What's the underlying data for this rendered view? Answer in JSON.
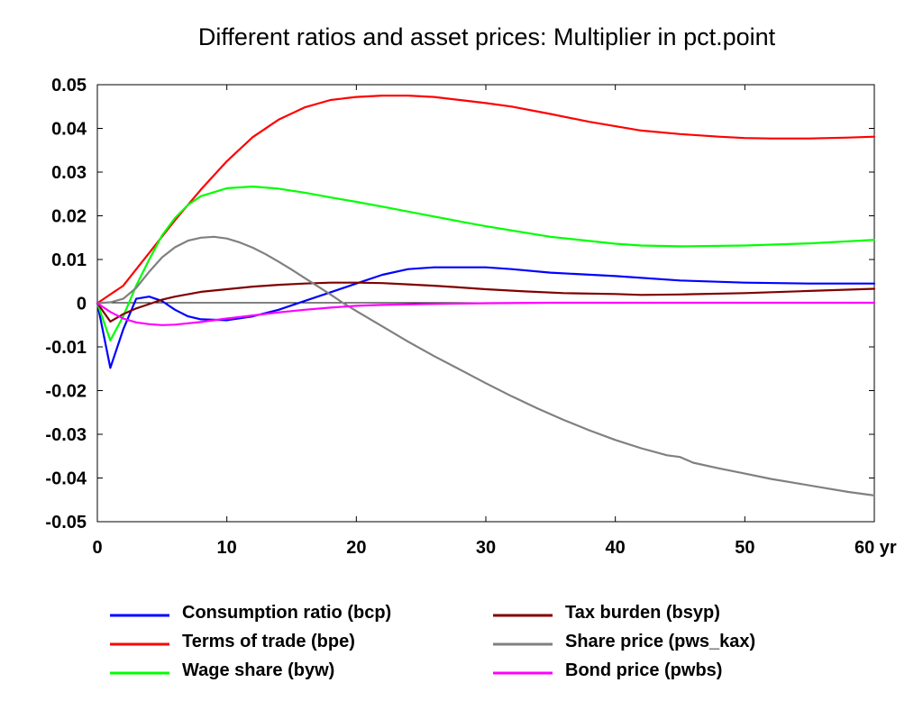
{
  "chart_data": {
    "type": "line",
    "title": "Different ratios and asset prices: Multiplier in pct.point",
    "xlabel": "",
    "ylabel": "",
    "xlim": [
      0,
      60
    ],
    "ylim": [
      -0.05,
      0.05
    ],
    "x_ticks": [
      0,
      10,
      20,
      30,
      40,
      50,
      60
    ],
    "x_tick_labels": [
      "0",
      "10",
      "20",
      "30",
      "40",
      "50",
      "60 yr"
    ],
    "y_ticks": [
      0.05,
      0.04,
      0.03,
      0.02,
      0.01,
      0,
      -0.01,
      -0.02,
      -0.03,
      -0.04,
      -0.05
    ],
    "y_tick_labels": [
      "0.05",
      "0.04",
      "0.03",
      "0.02",
      "0.01",
      "0",
      "-0.01",
      "-0.02",
      "-0.03",
      "-0.04",
      "-0.05"
    ],
    "grid": false,
    "zero_line": true,
    "legend_position": "bottom",
    "series": [
      {
        "name": "Consumption ratio (bcp)",
        "color": "#0000ff",
        "x": [
          0,
          1,
          2,
          3,
          4,
          5,
          6,
          7,
          8,
          10,
          12,
          14,
          16,
          18,
          20,
          22,
          24,
          26,
          28,
          30,
          32,
          35,
          40,
          45,
          50,
          55,
          60
        ],
        "y": [
          0,
          -0.0148,
          -0.006,
          0.001,
          0.0015,
          0.0005,
          -0.0015,
          -0.003,
          -0.0037,
          -0.0039,
          -0.003,
          -0.0015,
          0.0005,
          0.0025,
          0.0045,
          0.0065,
          0.0078,
          0.0082,
          0.0082,
          0.0082,
          0.0078,
          0.007,
          0.0062,
          0.0052,
          0.0047,
          0.0045,
          0.0045
        ]
      },
      {
        "name": "Terms of trade (bpe)",
        "color": "#ff0000",
        "x": [
          0,
          2,
          4,
          6,
          8,
          10,
          12,
          14,
          16,
          18,
          20,
          22,
          24,
          26,
          28,
          30,
          32,
          35,
          38,
          40,
          42,
          45,
          48,
          50,
          52,
          55,
          58,
          60
        ],
        "y": [
          0,
          0.004,
          0.0115,
          0.019,
          0.026,
          0.0325,
          0.038,
          0.042,
          0.0448,
          0.0465,
          0.0472,
          0.0475,
          0.0475,
          0.0472,
          0.0465,
          0.0458,
          0.045,
          0.0433,
          0.0415,
          0.0405,
          0.0395,
          0.0387,
          0.0381,
          0.0378,
          0.0377,
          0.0377,
          0.0379,
          0.0381
        ]
      },
      {
        "name": "Wage share (byw)",
        "color": "#00ff00",
        "x": [
          0,
          1,
          2,
          3,
          4,
          5,
          6,
          7,
          8,
          10,
          12,
          14,
          16,
          18,
          20,
          22,
          25,
          28,
          30,
          35,
          40,
          42,
          45,
          50,
          55,
          60
        ],
        "y": [
          0,
          -0.0085,
          -0.003,
          0.004,
          0.01,
          0.0155,
          0.0195,
          0.0225,
          0.0245,
          0.0263,
          0.0267,
          0.0262,
          0.0253,
          0.0242,
          0.0232,
          0.0221,
          0.0204,
          0.0187,
          0.0176,
          0.0152,
          0.0136,
          0.0132,
          0.013,
          0.0132,
          0.0137,
          0.0145
        ]
      },
      {
        "name": "Tax burden (bsyp)",
        "color": "#800000",
        "x": [
          0,
          1,
          2,
          3,
          4,
          5,
          6,
          8,
          10,
          12,
          14,
          16,
          18,
          20,
          22,
          24,
          26,
          28,
          30,
          33,
          36,
          40,
          42,
          45,
          50,
          55,
          60
        ],
        "y": [
          0,
          -0.0042,
          -0.0025,
          -0.0012,
          -0.0002,
          0.0008,
          0.0015,
          0.0026,
          0.0032,
          0.0038,
          0.0042,
          0.0045,
          0.0047,
          0.0047,
          0.0046,
          0.0043,
          0.004,
          0.0036,
          0.0032,
          0.0027,
          0.0023,
          0.0021,
          0.0019,
          0.002,
          0.0023,
          0.0028,
          0.0033
        ]
      },
      {
        "name": "Share price (pws_kax)",
        "color": "#808080",
        "x": [
          0,
          1,
          2,
          3,
          4,
          5,
          6,
          7,
          8,
          9,
          10,
          11,
          12,
          13,
          14,
          15,
          16,
          17,
          18,
          19,
          20,
          22,
          24,
          26,
          28,
          30,
          32,
          34,
          36,
          38,
          40,
          42,
          44,
          45,
          46,
          48,
          50,
          52,
          54,
          56,
          58,
          60
        ],
        "y": [
          0,
          0.0002,
          0.001,
          0.0035,
          0.0072,
          0.0105,
          0.0128,
          0.0143,
          0.015,
          0.0152,
          0.0148,
          0.0139,
          0.0127,
          0.0112,
          0.0095,
          0.0077,
          0.0058,
          0.0039,
          0.002,
          0.0,
          -0.0018,
          -0.0053,
          -0.0088,
          -0.0121,
          -0.0152,
          -0.0183,
          -0.0213,
          -0.0241,
          -0.0267,
          -0.0291,
          -0.0313,
          -0.0332,
          -0.0348,
          -0.0352,
          -0.0365,
          -0.0378,
          -0.039,
          -0.0402,
          -0.0412,
          -0.0422,
          -0.0432,
          -0.044
        ]
      },
      {
        "name": "Bond price (pwbs)",
        "color": "#ff00ff",
        "x": [
          0,
          1,
          2,
          3,
          4,
          5,
          6,
          7,
          8,
          9,
          10,
          12,
          14,
          16,
          18,
          20,
          22,
          25,
          30,
          35,
          40,
          50,
          60
        ],
        "y": [
          0,
          -0.002,
          -0.0035,
          -0.0044,
          -0.0048,
          -0.005,
          -0.0049,
          -0.0046,
          -0.0043,
          -0.0039,
          -0.0035,
          -0.0028,
          -0.0021,
          -0.0015,
          -0.001,
          -0.0006,
          -0.0004,
          -0.0002,
          0.0,
          0.0001,
          0.0001,
          0.0001,
          0.0001
        ]
      }
    ]
  }
}
